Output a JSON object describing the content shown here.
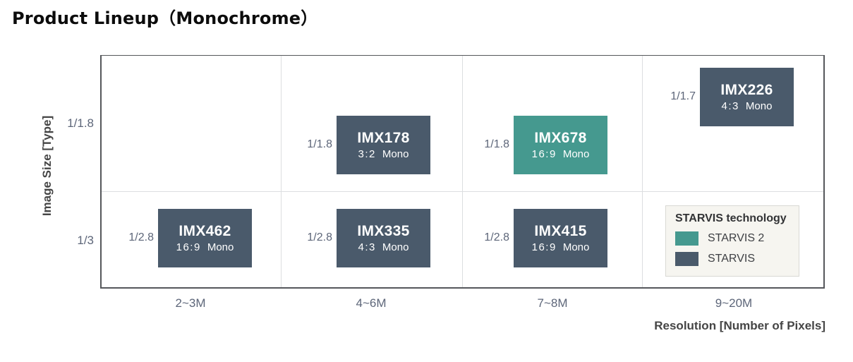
{
  "title": "Product Lineup（Monochrome）",
  "palette": {
    "starvis2_teal": "#45998F",
    "starvis_slate": "#4A5A6B",
    "grid_border": "#55575b",
    "gridline": "#dcdee0",
    "tick_text": "#5d6679",
    "legend_bg": "#f6f5f0"
  },
  "y_axis": {
    "title": "Image Size [Type]",
    "ticks": [
      "1/1.8",
      "1/3"
    ]
  },
  "x_axis": {
    "title": "Resolution [Number of Pixels]",
    "ticks": [
      "2~3M",
      "4~6M",
      "7~8M",
      "9~20M"
    ]
  },
  "legend": {
    "title": "STARVIS technology",
    "items": [
      {
        "label": "STARVIS 2",
        "color": "#45998F"
      },
      {
        "label": "STARVIS",
        "color": "#4A5A6B"
      }
    ]
  },
  "products": [
    {
      "model": "IMX462",
      "size": "1/2.8",
      "aspect": "16:9",
      "mono": "Mono",
      "technology": "STARVIS",
      "color": "#4A5A6B",
      "resolution": "2~3M",
      "row": "1/3"
    },
    {
      "model": "IMX178",
      "size": "1/1.8",
      "aspect": "3:2",
      "mono": "Mono",
      "technology": "STARVIS",
      "color": "#4A5A6B",
      "resolution": "4~6M",
      "row": "1/1.8"
    },
    {
      "model": "IMX335",
      "size": "1/2.8",
      "aspect": "4:3",
      "mono": "Mono",
      "technology": "STARVIS",
      "color": "#4A5A6B",
      "resolution": "4~6M",
      "row": "1/3"
    },
    {
      "model": "IMX678",
      "size": "1/1.8",
      "aspect": "16:9",
      "mono": "Mono",
      "technology": "STARVIS 2",
      "color": "#45998F",
      "resolution": "7~8M",
      "row": "1/1.8"
    },
    {
      "model": "IMX415",
      "size": "1/2.8",
      "aspect": "16:9",
      "mono": "Mono",
      "technology": "STARVIS",
      "color": "#4A5A6B",
      "resolution": "7~8M",
      "row": "1/3"
    },
    {
      "model": "IMX226",
      "size": "1/1.7",
      "aspect": "4:3",
      "mono": "Mono",
      "technology": "STARVIS",
      "color": "#4A5A6B",
      "resolution": "9~20M",
      "row": "1/1.8"
    }
  ],
  "chart_data": {
    "type": "scatter",
    "title": "Product Lineup（Monochrome）",
    "xlabel": "Resolution [Number of Pixels]",
    "ylabel": "Image Size [Type]",
    "x_categories": [
      "2~3M",
      "4~6M",
      "7~8M",
      "9~20M"
    ],
    "y_categories": [
      "1/3",
      "1/1.8"
    ],
    "grid": true,
    "legend_position": "bottom-right",
    "legend": {
      "title": "STARVIS technology",
      "entries": [
        "STARVIS 2",
        "STARVIS"
      ]
    },
    "points": [
      {
        "model": "IMX462",
        "x": "2~3M",
        "y": "1/3",
        "image_size_type": "1/2.8",
        "aspect_ratio": "16:9",
        "color_type": "Mono",
        "technology": "STARVIS"
      },
      {
        "model": "IMX178",
        "x": "4~6M",
        "y": "1/1.8",
        "image_size_type": "1/1.8",
        "aspect_ratio": "3:2",
        "color_type": "Mono",
        "technology": "STARVIS"
      },
      {
        "model": "IMX335",
        "x": "4~6M",
        "y": "1/3",
        "image_size_type": "1/2.8",
        "aspect_ratio": "4:3",
        "color_type": "Mono",
        "technology": "STARVIS"
      },
      {
        "model": "IMX678",
        "x": "7~8M",
        "y": "1/1.8",
        "image_size_type": "1/1.8",
        "aspect_ratio": "16:9",
        "color_type": "Mono",
        "technology": "STARVIS 2"
      },
      {
        "model": "IMX415",
        "x": "7~8M",
        "y": "1/3",
        "image_size_type": "1/2.8",
        "aspect_ratio": "16:9",
        "color_type": "Mono",
        "technology": "STARVIS"
      },
      {
        "model": "IMX226",
        "x": "9~20M",
        "y": "1/1.8",
        "image_size_type": "1/1.7",
        "aspect_ratio": "4:3",
        "color_type": "Mono",
        "technology": "STARVIS"
      }
    ]
  }
}
